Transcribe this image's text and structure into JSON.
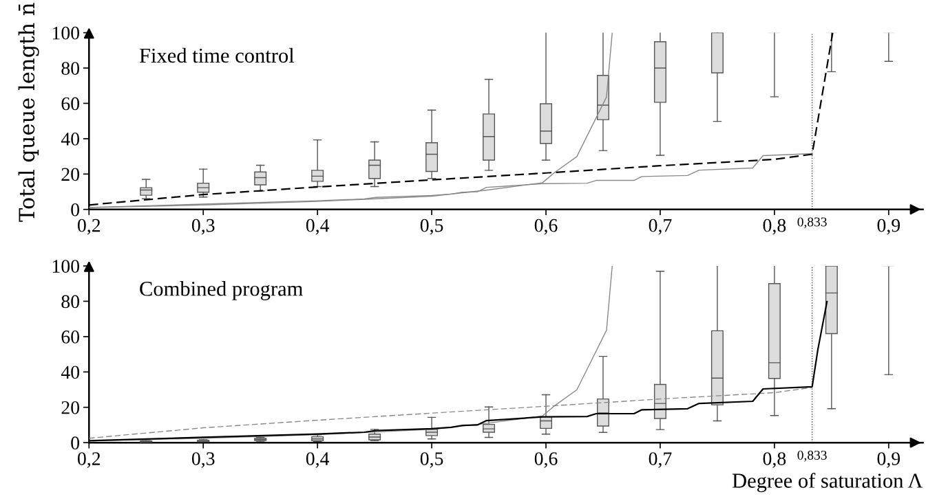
{
  "chart_data": [
    {
      "type": "line",
      "title": "Fixed time control",
      "ylabel": "Total queue length n̄",
      "xlim": [
        0.2,
        0.93
      ],
      "ylim": [
        0,
        100
      ],
      "xticks": [
        {
          "value": 0.2,
          "label": "0,2"
        },
        {
          "value": 0.3,
          "label": "0,3"
        },
        {
          "value": 0.4,
          "label": "0,4"
        },
        {
          "value": 0.5,
          "label": "0,5"
        },
        {
          "value": 0.6,
          "label": "0,6"
        },
        {
          "value": 0.7,
          "label": "0,7"
        },
        {
          "value": 0.8,
          "label": "0,8"
        },
        {
          "value": 0.9,
          "label": "0,9"
        }
      ],
      "yticks": [
        0,
        20,
        40,
        60,
        80,
        100
      ],
      "ref_lines": [
        {
          "axis": "x",
          "value": 0.833,
          "label": "0,833",
          "line_style": "dotted",
          "color": "#444444"
        }
      ],
      "series": [
        {
          "type": "box",
          "color": "#dcdcdc",
          "x": [
            0.25,
            0.3,
            0.35,
            0.4,
            0.45,
            0.5,
            0.55,
            0.6,
            0.65,
            0.7,
            0.75,
            0.8,
            0.85,
            0.9
          ],
          "boxes": [
            {
              "low": 6,
              "q1": 8,
              "median": 11,
              "q3": 12.3,
              "high": 17
            },
            {
              "low": 7,
              "q1": 9.7,
              "median": 12.3,
              "q3": 14.8,
              "high": 22.8
            },
            {
              "low": 10.4,
              "q1": 13.9,
              "median": 18,
              "q3": 21.2,
              "high": 25
            },
            {
              "low": 12.9,
              "q1": 15.9,
              "median": 18.8,
              "q3": 22.1,
              "high": 39.3
            },
            {
              "low": 12.9,
              "q1": 17.5,
              "median": 25,
              "q3": 27.9,
              "high": 38.2
            },
            {
              "low": 17.5,
              "q1": 21.5,
              "median": 31.2,
              "q3": 37.7,
              "high": 56.2
            },
            {
              "low": 22.1,
              "q1": 27.9,
              "median": 41.2,
              "q3": 54,
              "high": 73.6
            },
            {
              "low": 27.9,
              "q1": 37.3,
              "median": 44.3,
              "q3": 59.8,
              "high": 100
            },
            {
              "low": 33.3,
              "q1": 50.8,
              "median": 59,
              "q3": 75.8,
              "high": 100
            },
            {
              "low": 30.6,
              "q1": 60.6,
              "median": 80,
              "q3": 94.9,
              "high": 100
            },
            {
              "low": 49.8,
              "q1": 77.3,
              "median": null,
              "q3": 100,
              "high": 100
            },
            {
              "low": 63.7,
              "q1": 100,
              "median": null,
              "q3": 100,
              "high": 100
            },
            {
              "low": 77.9,
              "q1": 100,
              "median": null,
              "q3": 100,
              "high": 100
            },
            {
              "low": 83.8,
              "q1": 100,
              "median": null,
              "q3": 100,
              "high": 100
            }
          ]
        },
        {
          "color": "#888888",
          "line_style": "solid",
          "x": [
            0.2,
            0.3,
            0.4,
            0.5,
            0.549,
            0.597,
            0.607,
            0.627,
            0.653,
            0.658
          ],
          "values": [
            1,
            2.5,
            4.5,
            7.5,
            11,
            15.1,
            20.6,
            29.9,
            63.6,
            100
          ]
        },
        {
          "color": "#888888",
          "line_style": "solid",
          "x": [
            0.2,
            0.3,
            0.4,
            0.441,
            0.451,
            0.5,
            0.517,
            0.527,
            0.54,
            0.548,
            0.562,
            0.597,
            0.636,
            0.644,
            0.677,
            0.684,
            0.724,
            0.734,
            0.781,
            0.79,
            0.833
          ],
          "values": [
            1.1,
            3,
            4.9,
            5.9,
            6.8,
            7.9,
            8.7,
            9.7,
            10,
            12.5,
            13,
            14.6,
            14.8,
            16.4,
            16.4,
            18.6,
            19.2,
            22.2,
            23.4,
            30.4,
            31.6
          ]
        },
        {
          "color": "#000000",
          "line_style": "dashed",
          "x": [
            0.2,
            0.3,
            0.4,
            0.5,
            0.6,
            0.7,
            0.8,
            0.833,
            0.851
          ],
          "values": [
            2.5,
            8.4,
            12.7,
            16.7,
            20.6,
            24.7,
            28.3,
            31.2,
            100
          ]
        }
      ]
    },
    {
      "type": "line",
      "title": "Combined program",
      "xlabel": "Degree of saturation Λ",
      "xlim": [
        0.2,
        0.93
      ],
      "ylim": [
        0,
        100
      ],
      "xticks": [
        {
          "value": 0.2,
          "label": "0,2"
        },
        {
          "value": 0.3,
          "label": "0,3"
        },
        {
          "value": 0.4,
          "label": "0,4"
        },
        {
          "value": 0.5,
          "label": "0,5"
        },
        {
          "value": 0.6,
          "label": "0,6"
        },
        {
          "value": 0.7,
          "label": "0,7"
        },
        {
          "value": 0.8,
          "label": "0,8"
        },
        {
          "value": 0.9,
          "label": "0,9"
        }
      ],
      "yticks": [
        0,
        20,
        40,
        60,
        80,
        100
      ],
      "ref_lines": [
        {
          "axis": "x",
          "value": 0.833,
          "label": "0,833",
          "line_style": "dotted",
          "color": "#444444"
        }
      ],
      "series": [
        {
          "type": "box",
          "color": "#dcdcdc",
          "x": [
            0.25,
            0.3,
            0.35,
            0.4,
            0.45,
            0.5,
            0.55,
            0.6,
            0.65,
            0.7,
            0.75,
            0.8,
            0.85,
            0.9
          ],
          "boxes": [
            {
              "low": 0,
              "q1": 0.3,
              "median": 0.6,
              "q3": 1,
              "high": 1.2
            },
            {
              "low": 0.3,
              "q1": 0.5,
              "median": 0.8,
              "q3": 1.3,
              "high": 1.6
            },
            {
              "low": 0.8,
              "q1": 1.2,
              "median": 1.7,
              "q3": 2.4,
              "high": 3
            },
            {
              "low": 0.6,
              "q1": 1.1,
              "median": 2.1,
              "q3": 3.3,
              "high": 4.4
            },
            {
              "low": 1.1,
              "q1": 1.6,
              "median": 3.2,
              "q3": 4.8,
              "high": 7.5
            },
            {
              "low": 2.1,
              "q1": 4,
              "median": 5.9,
              "q3": 7.5,
              "high": 14.3
            },
            {
              "low": 3,
              "q1": 5.9,
              "median": 7.8,
              "q3": 10.3,
              "high": 20.2
            },
            {
              "low": 4.8,
              "q1": 8.1,
              "median": 12.3,
              "q3": 14.6,
              "high": 27.1
            },
            {
              "low": 5.8,
              "q1": 9.4,
              "median": 16.8,
              "q3": 24.7,
              "high": 48.8
            },
            {
              "low": 7.4,
              "q1": 13.7,
              "median": 22.2,
              "q3": 32.9,
              "high": 97
            },
            {
              "low": 12.3,
              "q1": 21.4,
              "median": 36.5,
              "q3": 63.3,
              "high": 100
            },
            {
              "low": 15.3,
              "q1": 36.3,
              "median": 45.2,
              "q3": 90,
              "high": 100
            },
            {
              "low": 19.2,
              "q1": 61.7,
              "median": 84.7,
              "q3": 100,
              "high": 100
            },
            {
              "low": 38.5,
              "q1": 100,
              "median": null,
              "q3": 100,
              "high": 100
            }
          ]
        },
        {
          "color": "#888888",
          "line_style": "solid",
          "x": [
            0.2,
            0.3,
            0.4,
            0.5,
            0.549,
            0.597,
            0.607,
            0.627,
            0.653,
            0.658
          ],
          "values": [
            1,
            2.5,
            4.5,
            7.5,
            11,
            15.1,
            20.6,
            29.9,
            63.6,
            100
          ]
        },
        {
          "color": "#888888",
          "line_style": "dashed",
          "x": [
            0.2,
            0.3,
            0.4,
            0.5,
            0.6,
            0.7,
            0.8,
            0.833
          ],
          "values": [
            2.5,
            8.4,
            12.7,
            16.7,
            20.6,
            24.7,
            28.3,
            31.2
          ]
        },
        {
          "color": "#000000",
          "line_style": "solid",
          "x": [
            0.2,
            0.3,
            0.4,
            0.441,
            0.451,
            0.5,
            0.517,
            0.527,
            0.54,
            0.548,
            0.562,
            0.597,
            0.636,
            0.644,
            0.677,
            0.684,
            0.724,
            0.734,
            0.781,
            0.79,
            0.833,
            0.838,
            0.846
          ],
          "values": [
            1.1,
            3,
            4.9,
            5.9,
            6.8,
            7.9,
            8.7,
            9.7,
            10,
            12.5,
            13,
            14.6,
            14.8,
            16.4,
            16.4,
            18.6,
            19.2,
            22.2,
            23.4,
            30.4,
            31.6,
            52.6,
            79.8
          ]
        }
      ]
    }
  ]
}
